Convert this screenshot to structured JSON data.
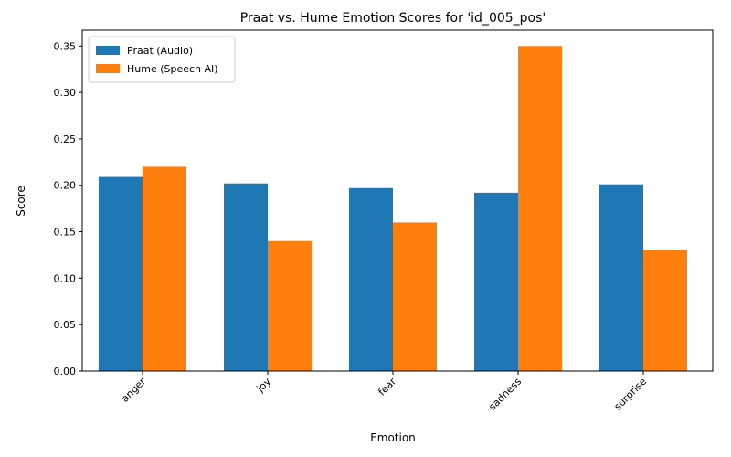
{
  "chart_data": {
    "type": "bar",
    "title": "Praat vs. Hume Emotion Scores for 'id_005_pos'",
    "xlabel": "Emotion",
    "ylabel": "Score",
    "categories": [
      "anger",
      "joy",
      "fear",
      "sadness",
      "surprise"
    ],
    "series": [
      {
        "name": "Praat (Audio)",
        "color": "#1f77b4",
        "values": [
          0.209,
          0.202,
          0.197,
          0.192,
          0.201
        ]
      },
      {
        "name": "Hume (Speech AI)",
        "color": "#ff7f0e",
        "values": [
          0.22,
          0.14,
          0.16,
          0.35,
          0.13
        ]
      }
    ],
    "ylim": [
      0,
      0.367
    ],
    "yticks": [
      "0.00",
      "0.05",
      "0.10",
      "0.15",
      "0.20",
      "0.25",
      "0.30",
      "0.35"
    ],
    "grid": false,
    "legend": "top-left",
    "xtick_rotation": 45
  }
}
